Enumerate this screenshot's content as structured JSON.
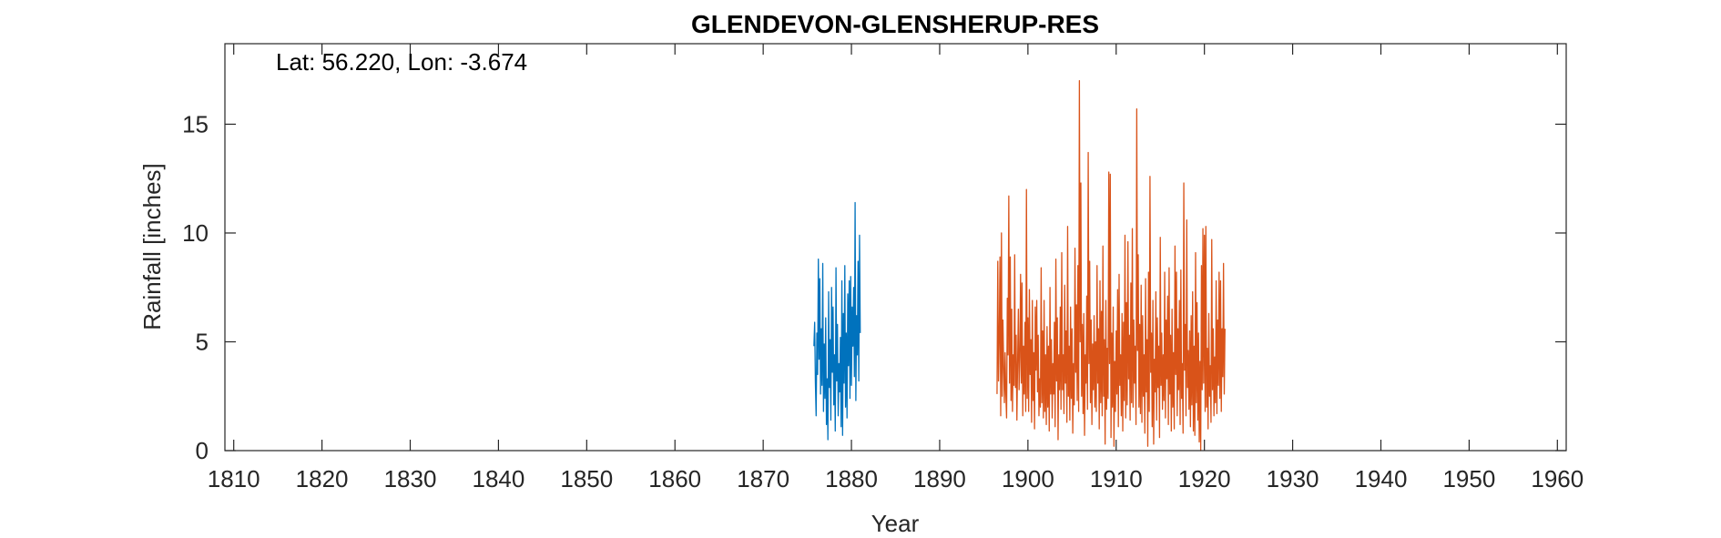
{
  "chart_data": {
    "type": "line",
    "title": "GLENDEVON-GLENSHERUP-RES",
    "annotation": "Lat: 56.220, Lon: -3.674",
    "xlabel": "Year",
    "ylabel": "Rainfall [inches]",
    "xlim": [
      1809,
      1961
    ],
    "ylim": [
      0,
      18.7
    ],
    "xticks": [
      1810,
      1820,
      1830,
      1840,
      1850,
      1860,
      1870,
      1880,
      1890,
      1900,
      1910,
      1920,
      1930,
      1940,
      1950,
      1960
    ],
    "yticks": [
      0,
      5,
      10,
      15
    ],
    "grid": false,
    "series": [
      {
        "color": "#0072BD",
        "x_start": 1875.75,
        "x_step": 0.08333,
        "values": [
          4.8,
          5.9,
          3.1,
          1.6,
          5.4,
          3.5,
          8.8,
          4.2,
          7.9,
          2.6,
          5.6,
          3.0,
          8.6,
          1.8,
          4.9,
          2.4,
          6.1,
          1.2,
          3.3,
          0.5,
          7.3,
          2.9,
          5.1,
          1.4,
          7.5,
          3.6,
          6.6,
          2.1,
          4.4,
          0.9,
          8.4,
          3.2,
          5.8,
          1.6,
          4.0,
          2.7,
          5.2,
          1.1,
          7.8,
          0.7,
          6.3,
          3.1,
          8.5,
          2.0,
          5.4,
          1.5,
          7.2,
          3.9,
          7.8,
          2.4,
          8.0,
          3.0,
          6.6,
          4.8,
          7.5,
          3.4,
          11.4,
          2.3,
          6.2,
          4.4,
          8.7,
          3.2,
          9.9,
          5.4
        ]
      },
      {
        "color": "#D95319",
        "x_start": 1896.5,
        "x_step": 0.08333,
        "values": [
          2.6,
          8.7,
          3.2,
          5.1,
          8.9,
          1.6,
          10.0,
          2.5,
          6.0,
          3.9,
          2.2,
          4.5,
          2.6,
          1.5,
          7.0,
          4.4,
          11.7,
          3.1,
          8.9,
          2.3,
          6.5,
          1.8,
          4.4,
          3.0,
          9.0,
          2.9,
          5.3,
          1.4,
          4.1,
          6.5,
          2.8,
          4.3,
          8.1,
          3.1,
          7.7,
          1.6,
          4.8,
          2.6,
          5.9,
          1.8,
          12.0,
          2.4,
          6.1,
          1.8,
          7.4,
          3.5,
          5.1,
          1.3,
          6.9,
          2.3,
          4.5,
          1.0,
          6.6,
          3.7,
          6.9,
          2.7,
          5.3,
          1.6,
          3.3,
          2.0,
          8.4,
          2.2,
          5.5,
          1.5,
          6.9,
          1.8,
          4.4,
          1.2,
          5.7,
          2.0,
          4.8,
          0.9,
          7.5,
          2.6,
          5.1,
          1.5,
          4.0,
          2.6,
          5.9,
          1.1,
          8.8,
          3.2,
          6.1,
          0.5,
          4.4,
          2.8,
          6.6,
          1.9,
          9.1,
          2.8,
          4.4,
          1.7,
          7.6,
          3.1,
          5.5,
          1.3,
          10.3,
          2.5,
          4.8,
          1.4,
          6.6,
          2.4,
          5.6,
          0.8,
          4.0,
          2.1,
          9.3,
          3.6,
          6.7,
          2.3,
          8.5,
          1.8,
          17.0,
          5.0,
          12.3,
          2.5,
          5.8,
          1.7,
          6.3,
          0.7,
          4.4,
          3.1,
          7.1,
          1.9,
          13.7,
          4.0,
          8.7,
          2.2,
          6.0,
          1.2,
          4.9,
          2.8,
          6.2,
          2.0,
          5.0,
          1.8,
          8.5,
          3.1,
          5.6,
          1.0,
          7.8,
          2.2,
          6.4,
          1.6,
          9.4,
          2.5,
          5.1,
          0.3,
          6.9,
          1.9,
          4.7,
          2.4,
          12.8,
          4.0,
          12.7,
          0.6,
          5.4,
          2.0,
          6.6,
          0.2,
          4.1,
          1.8,
          5.5,
          2.6,
          7.4,
          1.1,
          8.1,
          3.0,
          4.4,
          1.6,
          6.3,
          0.9,
          5.9,
          2.3,
          9.9,
          1.5,
          6.8,
          2.1,
          9.6,
          3.3,
          5.3,
          1.4,
          7.7,
          2.2,
          10.2,
          2.0,
          6.0,
          3.1,
          4.8,
          1.2,
          15.7,
          4.6,
          9.0,
          2.0,
          5.8,
          1.7,
          7.6,
          1.3,
          6.2,
          2.5,
          4.4,
          0.8,
          7.9,
          2.7,
          5.1,
          0.2,
          8.2,
          1.8,
          12.6,
          3.6,
          5.4,
          1.1,
          6.9,
          0.3,
          4.2,
          2.7,
          7.3,
          1.4,
          6.1,
          2.9,
          4.8,
          0.6,
          9.8,
          3.0,
          5.4,
          1.9,
          4.4,
          2.3,
          8.2,
          1.5,
          6.0,
          3.3,
          7.1,
          1.2,
          8.4,
          2.6,
          5.3,
          0.9,
          6.5,
          2.0,
          4.5,
          1.0,
          9.4,
          3.5,
          8.2,
          1.6,
          5.6,
          2.8,
          6.9,
          1.2,
          8.3,
          2.4,
          4.0,
          0.8,
          12.3,
          3.7,
          5.8,
          1.6,
          10.6,
          2.9,
          4.6,
          1.9,
          5.5,
          1.1,
          6.2,
          2.1,
          7.3,
          0.9,
          4.8,
          0.7,
          9.1,
          2.2,
          6.8,
          1.4,
          5.4,
          0.4,
          4.1,
          0.0,
          8.5,
          2.8,
          10.2,
          3.1,
          9.9,
          1.8,
          10.3,
          2.0,
          4.7,
          1.0,
          6.3,
          2.5,
          3.9,
          1.3,
          9.7,
          2.8,
          5.6,
          1.6,
          4.3,
          2.2,
          7.8,
          1.7,
          6.0,
          3.0,
          8.2,
          2.4,
          7.8,
          1.8,
          5.6,
          3.4,
          8.6,
          2.6,
          5.6
        ]
      }
    ]
  }
}
